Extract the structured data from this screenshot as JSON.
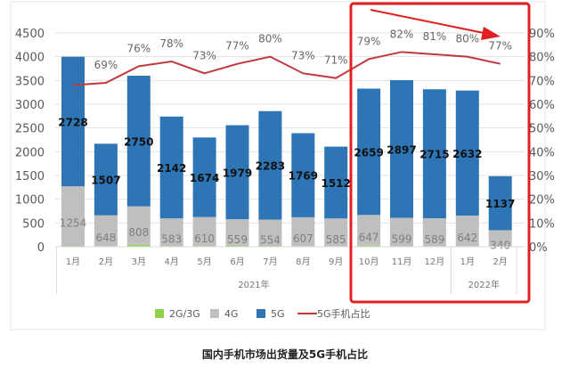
{
  "chart_data": {
    "type": "bar",
    "title": "国内手机市场出货量及5G手机占比",
    "categories": [
      "1月",
      "2月",
      "3月",
      "4月",
      "5月",
      "6月",
      "7月",
      "8月",
      "9月",
      "10月",
      "11月",
      "12月",
      "1月",
      "2月"
    ],
    "groups": [
      {
        "label": "2021年",
        "count": 12
      },
      {
        "label": "2022年",
        "count": 2
      }
    ],
    "series": [
      {
        "name": "2G/3G",
        "color": "#92d050",
        "values": [
          18,
          13,
          42,
          15,
          16,
          20,
          18,
          14,
          10,
          22,
          10,
          10,
          14,
          8
        ]
      },
      {
        "name": "4G",
        "color": "#bfbfbf",
        "values": [
          1254,
          648,
          808,
          583,
          610,
          559,
          554,
          607,
          585,
          647,
          599,
          589,
          642,
          340
        ]
      },
      {
        "name": "5G",
        "color": "#2e75b6",
        "values": [
          2728,
          1507,
          2750,
          2142,
          1674,
          1979,
          2283,
          1769,
          1512,
          2659,
          2897,
          2715,
          2632,
          1137
        ]
      },
      {
        "name": "5G手机占比",
        "color": "#c0393b",
        "type": "line",
        "axis": "right",
        "values": [
          68,
          69,
          76,
          78,
          73,
          77,
          80,
          73,
          71,
          79,
          82,
          81,
          80,
          77
        ],
        "labels": [
          "",
          "69%",
          "76%",
          "78%",
          "73%",
          "77%",
          "80%",
          "73%",
          "71%",
          "79%",
          "82%",
          "81%",
          "80%",
          "77%"
        ]
      }
    ],
    "ylim": [
      0,
      4500
    ],
    "yticks": [
      0,
      500,
      1000,
      1500,
      2000,
      2500,
      3000,
      3500,
      4000,
      4500
    ],
    "y2lim": [
      0,
      90
    ],
    "y2ticks": [
      "0%",
      "10%",
      "20%",
      "30%",
      "40%",
      "50%",
      "60%",
      "70%",
      "80%",
      "90%"
    ],
    "legend": "bottom",
    "grid": true,
    "annotation": "red box highlighting 2021-10 to 2022-02 with downward arrow"
  }
}
